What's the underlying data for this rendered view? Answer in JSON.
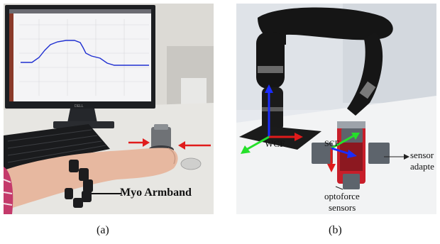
{
  "panel_a": {
    "label": "Myo Armband",
    "caption": "(a)",
    "monitor_brand": "DELL"
  },
  "panel_b": {
    "labels": {
      "wcf": "WCF",
      "scf": "SCF",
      "sensor_adapter": [
        "sensor",
        "adapte"
      ],
      "optoforce": [
        "optoforce",
        "sensors"
      ]
    },
    "caption": "(b)"
  },
  "colors": {
    "arrow_red": "#e01b1b",
    "plot_line": "#1f2fd1",
    "frame_blue": "#1a2cff",
    "frame_green": "#25e02a"
  }
}
